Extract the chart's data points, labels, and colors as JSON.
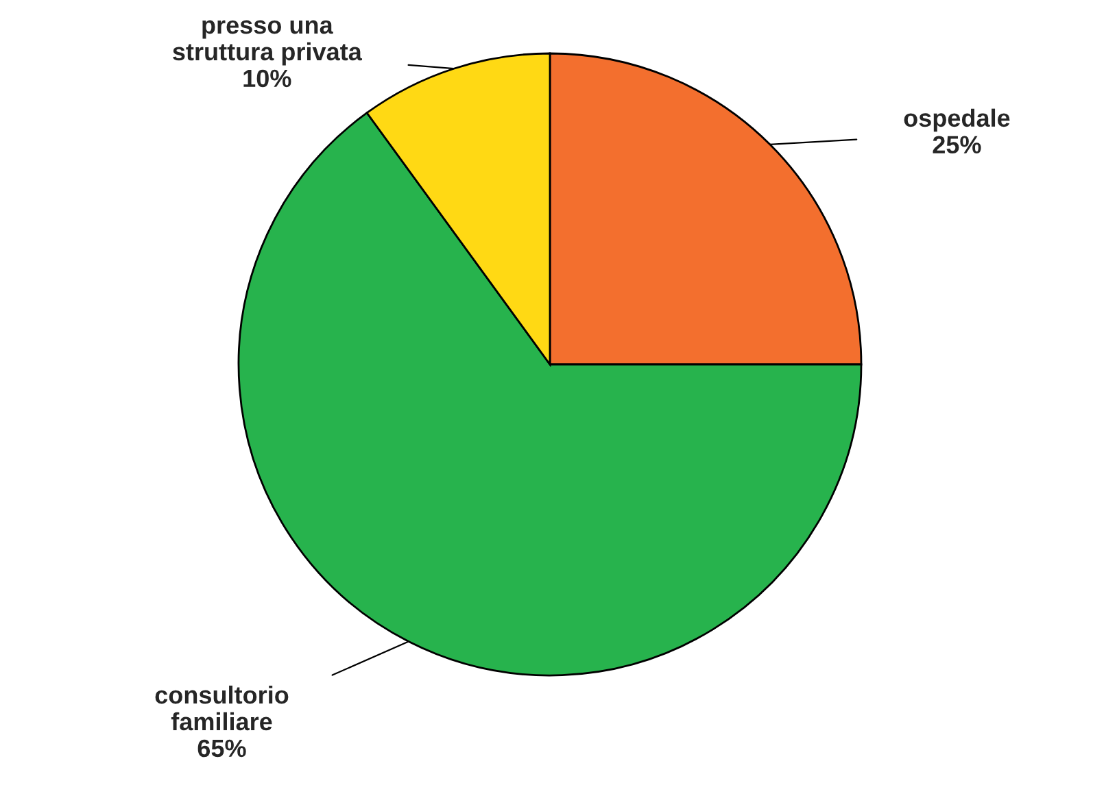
{
  "chart_data": {
    "type": "pie",
    "categories": [
      "ospedale",
      "consultorio\nfamiliare",
      "presso una\nstruttura privata"
    ],
    "values": [
      25,
      65,
      10
    ],
    "colors": [
      "#f36f2e",
      "#27b34d",
      "#ffd914"
    ],
    "value_labels": [
      "25%",
      "65%",
      "10%"
    ]
  }
}
